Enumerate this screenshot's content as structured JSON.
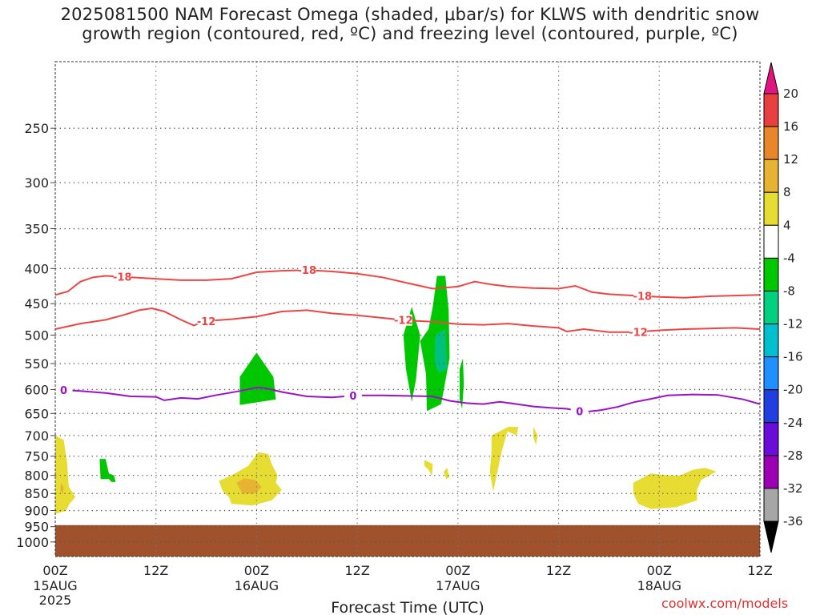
{
  "title_line1": "2025081500 NAM Forecast Omega (shaded, μbar/s) for KLWS with dendritic snow",
  "title_line2": "growth region (contoured, red, ºC) and freezing level (contoured, purple, ºC)",
  "credit": "coolwx.com/models",
  "chart_data": {
    "type": "heatmap",
    "xlabel": "Forecast Time (UTC)",
    "x_ticks": [
      {
        "hour": 0,
        "label": "00Z",
        "sub": "15AUG",
        "sub2": "2025"
      },
      {
        "hour": 12,
        "label": "12Z",
        "sub": "",
        "sub2": ""
      },
      {
        "hour": 24,
        "label": "00Z",
        "sub": "16AUG",
        "sub2": ""
      },
      {
        "hour": 36,
        "label": "12Z",
        "sub": "",
        "sub2": ""
      },
      {
        "hour": 48,
        "label": "00Z",
        "sub": "17AUG",
        "sub2": ""
      },
      {
        "hour": 60,
        "label": "12Z",
        "sub": "",
        "sub2": ""
      },
      {
        "hour": 72,
        "label": "00Z",
        "sub": "18AUG",
        "sub2": ""
      },
      {
        "hour": 84,
        "label": "12Z",
        "sub": "",
        "sub2": ""
      }
    ],
    "x_range_hours": [
      0,
      84
    ],
    "y_axis": "pressure (mb), log scale, reversed",
    "y_range": [
      200,
      1050
    ],
    "y_ticks": [
      250,
      300,
      350,
      400,
      450,
      500,
      550,
      600,
      650,
      700,
      750,
      800,
      850,
      900,
      950,
      1000
    ],
    "grid": true,
    "ground_fill": {
      "top_pressure": 945,
      "color": "#a0522d"
    },
    "colorbar": {
      "levels": [
        -36,
        -32,
        -28,
        -24,
        -20,
        -16,
        -12,
        -8,
        -4,
        4,
        8,
        12,
        16,
        20
      ],
      "colors": [
        "#000000",
        "#a6a6a6",
        "#9b00b4",
        "#6a0dd8",
        "#1f3fe0",
        "#1e90ff",
        "#00c0d0",
        "#00d080",
        "#00c800",
        "#ffffff",
        "#e6dc32",
        "#e6b432",
        "#e8872a",
        "#e84040",
        "#e0157f"
      ]
    },
    "contours": [
      {
        "label": "-18",
        "color": "#ee4444",
        "points": [
          [
            0,
            437
          ],
          [
            1.5,
            432
          ],
          [
            3,
            418
          ],
          [
            4.5,
            412
          ],
          [
            6,
            410
          ],
          [
            9,
            412
          ],
          [
            12,
            414
          ],
          [
            15,
            416
          ],
          [
            18,
            416
          ],
          [
            21,
            414
          ],
          [
            24,
            405
          ],
          [
            27,
            403
          ],
          [
            30,
            402
          ],
          [
            33,
            404
          ],
          [
            36,
            407
          ],
          [
            39,
            412
          ],
          [
            42,
            420
          ],
          [
            45,
            428
          ],
          [
            48,
            425
          ],
          [
            50,
            418
          ],
          [
            52,
            422
          ],
          [
            54,
            425
          ],
          [
            57,
            427
          ],
          [
            60,
            428
          ],
          [
            62,
            424
          ],
          [
            64,
            433
          ],
          [
            66,
            436
          ],
          [
            69,
            438
          ],
          [
            72,
            440
          ],
          [
            75,
            441
          ],
          [
            78,
            439
          ],
          [
            81,
            438
          ],
          [
            84,
            437
          ]
        ],
        "labels_at": [
          8,
          30,
          70
        ]
      },
      {
        "label": "-12",
        "color": "#ee4444",
        "points": [
          [
            0,
            490
          ],
          [
            3,
            481
          ],
          [
            6,
            475
          ],
          [
            8,
            468
          ],
          [
            10,
            460
          ],
          [
            11.5,
            457
          ],
          [
            13,
            462
          ],
          [
            15,
            475
          ],
          [
            16.5,
            484
          ],
          [
            18,
            477
          ],
          [
            21,
            474
          ],
          [
            24,
            470
          ],
          [
            27,
            462
          ],
          [
            30,
            460
          ],
          [
            33,
            465
          ],
          [
            36,
            468
          ],
          [
            39,
            472
          ],
          [
            42,
            476
          ],
          [
            45,
            478
          ],
          [
            48,
            482
          ],
          [
            51,
            483
          ],
          [
            54,
            481
          ],
          [
            57,
            485
          ],
          [
            60,
            488
          ],
          [
            61,
            494
          ],
          [
            63,
            490
          ],
          [
            66,
            495
          ],
          [
            69,
            495
          ],
          [
            72,
            492
          ],
          [
            75,
            490
          ],
          [
            78,
            489
          ],
          [
            81,
            488
          ],
          [
            84,
            490
          ]
        ],
        "labels_at": [
          18,
          41.5,
          69.5
        ]
      },
      {
        "label": "0",
        "color": "#9b11c8",
        "points": [
          [
            0,
            600
          ],
          [
            3,
            603
          ],
          [
            6,
            607
          ],
          [
            9,
            614
          ],
          [
            12,
            615
          ],
          [
            13,
            622
          ],
          [
            15,
            617
          ],
          [
            17,
            619
          ],
          [
            19,
            612
          ],
          [
            22,
            603
          ],
          [
            24,
            596
          ],
          [
            25,
            597
          ],
          [
            27,
            605
          ],
          [
            30,
            614
          ],
          [
            33,
            616
          ],
          [
            36,
            612
          ],
          [
            39,
            612
          ],
          [
            42,
            613
          ],
          [
            45,
            614
          ],
          [
            47,
            623
          ],
          [
            49,
            628
          ],
          [
            51,
            630
          ],
          [
            53,
            625
          ],
          [
            55,
            630
          ],
          [
            57,
            635
          ],
          [
            59,
            638
          ],
          [
            61,
            640
          ],
          [
            63,
            647
          ],
          [
            65,
            643
          ],
          [
            67,
            636
          ],
          [
            69,
            626
          ],
          [
            71,
            619
          ],
          [
            73,
            612
          ],
          [
            76,
            610
          ],
          [
            79,
            611
          ],
          [
            82,
            620
          ],
          [
            84,
            630
          ]
        ],
        "labels_at": [
          1,
          35.5,
          62.5
        ]
      }
    ],
    "omega_regions": [
      {
        "name": "green-24h",
        "value": -6,
        "color": "#00c800",
        "points": [
          [
            22,
            575
          ],
          [
            24,
            530
          ],
          [
            26,
            575
          ],
          [
            26.3,
            620
          ],
          [
            22,
            632
          ],
          [
            22,
            590
          ]
        ]
      },
      {
        "name": "green-42h",
        "value": -6,
        "color": "#00c800",
        "points": [
          [
            41.5,
            500
          ],
          [
            42.5,
            455
          ],
          [
            43.5,
            500
          ],
          [
            43,
            580
          ],
          [
            42.5,
            625
          ],
          [
            41.8,
            560
          ]
        ]
      },
      {
        "name": "green-46h",
        "value": -6,
        "color": "#00c800",
        "points": [
          [
            43.5,
            510
          ],
          [
            44.5,
            490
          ],
          [
            45,
            455
          ],
          [
            45.5,
            410
          ],
          [
            46.5,
            410
          ],
          [
            46.9,
            460
          ],
          [
            47,
            540
          ],
          [
            46,
            630
          ],
          [
            44.3,
            645
          ],
          [
            44.2,
            570
          ]
        ]
      },
      {
        "name": "teal-46h",
        "value": -10,
        "color": "#00c080",
        "points": [
          [
            45.3,
            500
          ],
          [
            46.5,
            490
          ],
          [
            46.7,
            560
          ],
          [
            45.7,
            568
          ],
          [
            45.2,
            545
          ]
        ]
      },
      {
        "name": "green-48h",
        "value": -6,
        "color": "#00c800",
        "points": [
          [
            48.2,
            560
          ],
          [
            48.6,
            540
          ],
          [
            48.7,
            590
          ],
          [
            48.5,
            640
          ],
          [
            48.2,
            620
          ]
        ]
      },
      {
        "name": "green-5h",
        "value": -6,
        "color": "#00c800",
        "points": [
          [
            5.3,
            757
          ],
          [
            6,
            757
          ],
          [
            6.4,
            795
          ],
          [
            7,
            800
          ],
          [
            7.2,
            818
          ],
          [
            6.7,
            818
          ],
          [
            6.4,
            810
          ],
          [
            5.4,
            810
          ]
        ]
      },
      {
        "name": "yellow-0h",
        "value": 6,
        "color": "#e6dc32",
        "points": [
          [
            0,
            700
          ],
          [
            1,
            710
          ],
          [
            1.4,
            765
          ],
          [
            1.6,
            830
          ],
          [
            2.4,
            860
          ],
          [
            1.7,
            880
          ],
          [
            1.3,
            900
          ],
          [
            0,
            910
          ]
        ]
      },
      {
        "name": "yellow-24h",
        "value": 6,
        "color": "#e6dc32",
        "points": [
          [
            19.5,
            815
          ],
          [
            21,
            800
          ],
          [
            23,
            775
          ],
          [
            24.2,
            740
          ],
          [
            25.4,
            745
          ],
          [
            25.8,
            770
          ],
          [
            26.5,
            800
          ],
          [
            26.3,
            820
          ],
          [
            27,
            840
          ],
          [
            25.8,
            870
          ],
          [
            23.5,
            885
          ],
          [
            21,
            880
          ],
          [
            20.7,
            860
          ],
          [
            20,
            845
          ]
        ]
      },
      {
        "name": "orange-24h",
        "value": 10,
        "color": "#e6b432",
        "points": [
          [
            21.6,
            820
          ],
          [
            22.5,
            808
          ],
          [
            23.8,
            812
          ],
          [
            24.6,
            832
          ],
          [
            23.8,
            850
          ],
          [
            22.3,
            850
          ]
        ]
      },
      {
        "name": "orange-0h",
        "value": 10,
        "color": "#e6b432",
        "points": [
          [
            0.7,
            820
          ],
          [
            1,
            832
          ],
          [
            0.9,
            852
          ],
          [
            0.6,
            840
          ]
        ]
      },
      {
        "name": "yellow-44h",
        "value": 6,
        "color": "#e6dc32",
        "points": [
          [
            44,
            760
          ],
          [
            45,
            770
          ],
          [
            44.9,
            802
          ],
          [
            44.5,
            785
          ],
          [
            44,
            775
          ]
        ]
      },
      {
        "name": "yellow-46h",
        "value": 6,
        "color": "#e6dc32",
        "points": [
          [
            46.3,
            790
          ],
          [
            46.7,
            780
          ],
          [
            47,
            805
          ],
          [
            46.6,
            810
          ]
        ]
      },
      {
        "name": "yellow-52h",
        "value": 6,
        "color": "#e6dc32",
        "points": [
          [
            52,
            700
          ],
          [
            54,
            680
          ],
          [
            55.2,
            680
          ],
          [
            55,
            700
          ],
          [
            53.9,
            690
          ],
          [
            53.2,
            740
          ],
          [
            52.2,
            845
          ],
          [
            51.8,
            790
          ],
          [
            52,
            740
          ]
        ]
      },
      {
        "name": "yellow-57h",
        "value": 6,
        "color": "#e6dc32",
        "points": [
          [
            57,
            680
          ],
          [
            57.5,
            700
          ],
          [
            57.3,
            722
          ],
          [
            57,
            705
          ]
        ]
      },
      {
        "name": "yellow-75h",
        "value": 6,
        "color": "#e6dc32",
        "points": [
          [
            68.9,
            820
          ],
          [
            71,
            795
          ],
          [
            73,
            800
          ],
          [
            74.5,
            800
          ],
          [
            76,
            785
          ],
          [
            77.5,
            780
          ],
          [
            78.8,
            790
          ],
          [
            77,
            812
          ],
          [
            76.5,
            840
          ],
          [
            76.5,
            870
          ],
          [
            74,
            890
          ],
          [
            71,
            895
          ],
          [
            69.5,
            880
          ],
          [
            68.9,
            850
          ]
        ]
      }
    ]
  }
}
